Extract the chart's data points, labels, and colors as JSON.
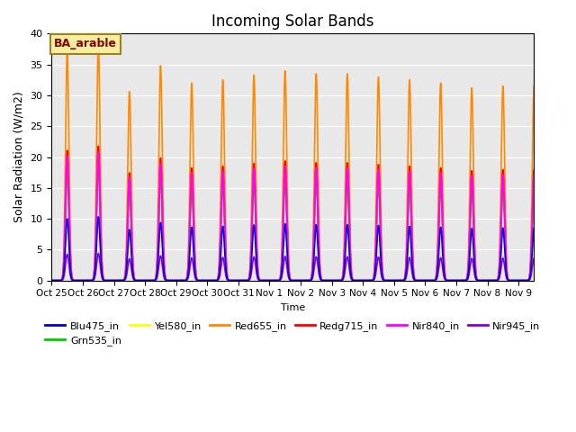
{
  "title": "Incoming Solar Bands",
  "xlabel": "Time",
  "ylabel": "Solar Radiation (W/m2)",
  "annotation": "BA_arable",
  "annotation_color": "#8B0000",
  "annotation_bg": "#F5F0A0",
  "background_color": "#E8E8E8",
  "ylim": [
    0,
    40
  ],
  "series": [
    {
      "name": "Blu475_in",
      "color": "#0000CC",
      "peak_factor": 0.27
    },
    {
      "name": "Grn535_in",
      "color": "#00CC00",
      "peak_factor": 0.47
    },
    {
      "name": "Yel580_in",
      "color": "#FFFF00",
      "peak_factor": 0.52
    },
    {
      "name": "Red655_in",
      "color": "#FF8800",
      "peak_factor": 1.0
    },
    {
      "name": "Redg715_in",
      "color": "#FF0000",
      "peak_factor": 0.57
    },
    {
      "name": "Nir840_in",
      "color": "#FF00FF",
      "peak_factor": 0.545
    },
    {
      "name": "Nir945_in",
      "color": "#8800CC",
      "peak_factor": 0.115
    }
  ],
  "tick_labels": [
    "Oct 25",
    "Oct 26",
    "Oct 27",
    "Oct 28",
    "Oct 29",
    "Oct 30",
    "Oct 31",
    "Nov 1",
    "Nov 2",
    "Nov 3",
    "Nov 4",
    "Nov 5",
    "Nov 6",
    "Nov 7",
    "Nov 8",
    "Nov 9"
  ],
  "orange_peaks": [
    37.0,
    38.2,
    30.6,
    34.8,
    32.0,
    32.5,
    33.3,
    34.0,
    33.5,
    33.5,
    33.0,
    32.5,
    32.0,
    31.2,
    31.5,
    31.5
  ],
  "n_days": 15.5,
  "points_per_day": 200,
  "sigma": 0.055
}
